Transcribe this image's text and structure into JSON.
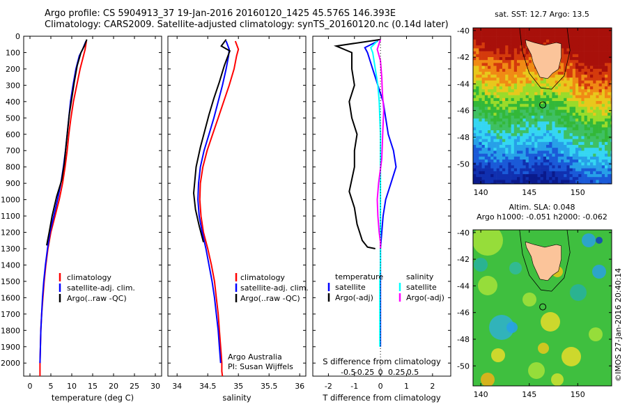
{
  "header": {
    "line1": "Argo profile: CS 5904913_37 19-Jan-2016 20160120_1425 45.576S 146.393E",
    "line2": "Climatology: CARS2009. Satellite-adjusted climatology: synTS_20160120.nc (0.14d later)"
  },
  "colors": {
    "climatology": "#ff0000",
    "satellite": "#0000ff",
    "argo": "#000000",
    "sal_sat": "#00ffff",
    "sal_argo": "#ff00ff"
  },
  "depth_axis": {
    "ticks": [
      0,
      100,
      200,
      300,
      400,
      500,
      600,
      700,
      800,
      900,
      1000,
      1100,
      1200,
      1300,
      1400,
      1500,
      1600,
      1700,
      1800,
      1900,
      2000
    ],
    "range": [
      0,
      2080
    ]
  },
  "panels": {
    "temperature": {
      "xlabel": "temperature (deg C)",
      "xticks": [
        0,
        5,
        10,
        15,
        20,
        25,
        30
      ],
      "xlim": [
        -1.5,
        31.5
      ],
      "legend": [
        "climatology",
        "satellite-adj. clim.",
        "Argo(..raw -QC)"
      ]
    },
    "salinity": {
      "xlabel": "salinity",
      "xticks": [
        "34",
        "34.5",
        "35",
        "35.5",
        "36"
      ],
      "xlim": [
        33.85,
        36.1
      ],
      "legend": [
        "climatology",
        "satellite-adj. clim.",
        "Argo(..raw -QC)"
      ],
      "note1": "Argo Australia",
      "note2": "PI: Susan Wijffels"
    },
    "difference": {
      "xlabel": "T difference from climatology",
      "xticks": [
        "-2",
        "-1",
        "0",
        "1",
        "2"
      ],
      "xlim": [
        -2.6,
        2.7
      ],
      "top_label": "S difference from climatology",
      "sticks": [
        "-0.5",
        "-0.25",
        "0",
        "0.25",
        "0.5"
      ],
      "legend_t_title": "temperature",
      "legend_t": [
        "satellite",
        "Argo(-adj)"
      ],
      "legend_s_title": "salinity",
      "legend_s": [
        "satellite",
        "Argo(-adj)"
      ]
    }
  },
  "maps": {
    "sst": {
      "title": "sat. SST: 12.7 Argo: 13.5"
    },
    "sla": {
      "title1": "Altim. SLA: 0.048",
      "title2": "Argo h1000: -0.051 h2000: -0.062"
    },
    "lat_ticks": [
      "-40",
      "-42",
      "-44",
      "-46",
      "-48",
      "-50"
    ],
    "lon_ticks": [
      "140",
      "145",
      "150"
    ],
    "lat_range": [
      -51.5,
      -39.8
    ],
    "lon_range": [
      139.2,
      153.5
    ]
  },
  "credit": "©IMOS 27-Jan-2016 20:40:14",
  "chart_data": [
    {
      "type": "line",
      "title": "",
      "xlabel": "temperature (deg C)",
      "ylabel": "",
      "ylim": [
        2080,
        0
      ],
      "series": [
        {
          "name": "climatology",
          "x": [
            13.5,
            13.2,
            12.8,
            12.0,
            11.2,
            10.4,
            9.8,
            9.3,
            8.9,
            8.4,
            7.8,
            7.0,
            6.0,
            5.0,
            4.3,
            3.8,
            3.4,
            3.1,
            2.8,
            2.6,
            2.5,
            2.45,
            2.4,
            2.4,
            2.4
          ],
          "y": [
            30,
            80,
            120,
            200,
            300,
            400,
            500,
            600,
            700,
            800,
            900,
            1000,
            1100,
            1200,
            1300,
            1400,
            1500,
            1600,
            1700,
            1800,
            1900,
            1950,
            2000,
            2050,
            2080
          ]
        },
        {
          "name": "satellite-adj. clim.",
          "x": [
            13.4,
            12.6,
            11.8,
            11.0,
            10.3,
            9.7,
            9.3,
            8.9,
            8.5,
            8.0,
            7.4,
            6.6,
            5.7,
            4.8,
            4.2,
            3.7,
            3.3,
            3.0,
            2.8,
            2.6,
            2.5,
            2.45,
            2.4
          ],
          "y": [
            30,
            80,
            120,
            200,
            300,
            400,
            500,
            600,
            700,
            800,
            900,
            1000,
            1100,
            1200,
            1300,
            1400,
            1500,
            1600,
            1700,
            1800,
            1900,
            1950,
            2000
          ]
        },
        {
          "name": "Argo(..raw -QC)",
          "x": [
            13.6,
            13.0,
            12.2,
            11.3,
            10.6,
            10.0,
            9.4,
            9.0,
            8.6,
            8.2,
            7.6,
            6.4,
            5.3,
            4.6,
            4.0
          ],
          "y": [
            20,
            60,
            100,
            180,
            280,
            380,
            480,
            580,
            680,
            780,
            880,
            980,
            1100,
            1200,
            1280
          ]
        }
      ]
    },
    {
      "type": "line",
      "title": "",
      "xlabel": "salinity",
      "ylabel": "",
      "ylim": [
        2080,
        0
      ],
      "series": [
        {
          "name": "climatology",
          "x": [
            34.95,
            35.0,
            34.97,
            34.93,
            34.85,
            34.76,
            34.67,
            34.58,
            34.49,
            34.42,
            34.38,
            34.37,
            34.39,
            34.43,
            34.5,
            34.56,
            34.61,
            34.64,
            34.67,
            34.69,
            34.71,
            34.72,
            34.73,
            34.73,
            34.74
          ],
          "y": [
            30,
            80,
            120,
            200,
            300,
            400,
            500,
            600,
            700,
            800,
            900,
            1000,
            1100,
            1200,
            1300,
            1400,
            1500,
            1600,
            1700,
            1800,
            1900,
            1950,
            2000,
            2050,
            2080
          ]
        },
        {
          "name": "satellite-adj. clim.",
          "x": [
            34.8,
            34.85,
            34.84,
            34.8,
            34.74,
            34.67,
            34.6,
            34.52,
            34.44,
            34.38,
            34.35,
            34.34,
            34.36,
            34.41,
            34.47,
            34.52,
            34.57,
            34.61,
            34.64,
            34.67,
            34.69,
            34.7,
            34.71
          ],
          "y": [
            30,
            80,
            120,
            200,
            300,
            400,
            500,
            600,
            700,
            800,
            900,
            1000,
            1100,
            1200,
            1300,
            1400,
            1500,
            1600,
            1700,
            1800,
            1900,
            1950,
            2000
          ]
        },
        {
          "name": "Argo(..raw -QC)",
          "x": [
            34.8,
            34.72,
            34.86,
            34.77,
            34.69,
            34.6,
            34.52,
            34.45,
            34.38,
            34.31,
            34.27,
            34.3,
            34.36,
            34.43
          ],
          "y": [
            20,
            60,
            90,
            180,
            280,
            380,
            480,
            580,
            680,
            800,
            960,
            1060,
            1160,
            1260
          ]
        }
      ]
    },
    {
      "type": "line",
      "title": "",
      "xlabel": "T difference from climatology",
      "ylabel": "",
      "ylim": [
        2080,
        0
      ],
      "series": [
        {
          "name": "satellite",
          "x": [
            -0.1,
            -0.6,
            -0.5,
            -0.3,
            -0.1,
            0.1,
            0.2,
            0.3,
            0.5,
            0.6,
            0.4,
            0.2,
            0.1,
            0.05,
            0.0,
            0.0,
            0.0,
            0.0,
            0.0,
            0.0,
            0.0
          ],
          "y": [
            30,
            70,
            100,
            200,
            300,
            400,
            500,
            600,
            700,
            800,
            900,
            1000,
            1100,
            1200,
            1300,
            1400,
            1500,
            1600,
            1700,
            1800,
            1900
          ]
        },
        {
          "name": "Argo(-adj)",
          "x": [
            0.0,
            -1.7,
            -1.1,
            -1.1,
            -1.0,
            -1.2,
            -1.1,
            -0.9,
            -1.0,
            -1.0,
            -1.2,
            -1.0,
            -0.9,
            -0.7,
            -0.5,
            -0.2
          ],
          "y": [
            20,
            60,
            100,
            200,
            300,
            400,
            500,
            600,
            700,
            800,
            950,
            1050,
            1150,
            1250,
            1290,
            1300
          ]
        }
      ]
    },
    {
      "type": "line",
      "title": "",
      "xlabel": "S difference from climatology",
      "ylabel": "",
      "ylim": [
        2080,
        0
      ],
      "series": [
        {
          "name": "satellite",
          "x": [
            -0.05,
            -0.15,
            -0.12,
            -0.08,
            -0.04,
            -0.02,
            -0.01,
            0.0,
            0.0,
            0.0,
            0.0,
            0.0,
            0.0,
            0.0,
            0.0,
            0.0,
            -0.01,
            -0.01,
            -0.01,
            -0.01,
            -0.01
          ],
          "y": [
            30,
            70,
            100,
            200,
            300,
            400,
            500,
            600,
            700,
            800,
            900,
            1000,
            1100,
            1200,
            1300,
            1400,
            1500,
            1600,
            1700,
            1800,
            1900
          ]
        },
        {
          "name": "Argo(-adj)",
          "x": [
            0.0,
            -0.05,
            0.0,
            0.02,
            0.03,
            0.05,
            0.04,
            0.03,
            0.02,
            -0.03,
            -0.05,
            -0.04,
            -0.02,
            0.0,
            0.0
          ],
          "y": [
            20,
            80,
            150,
            250,
            350,
            450,
            550,
            650,
            750,
            900,
            1000,
            1100,
            1200,
            1260,
            1300
          ]
        }
      ]
    }
  ]
}
